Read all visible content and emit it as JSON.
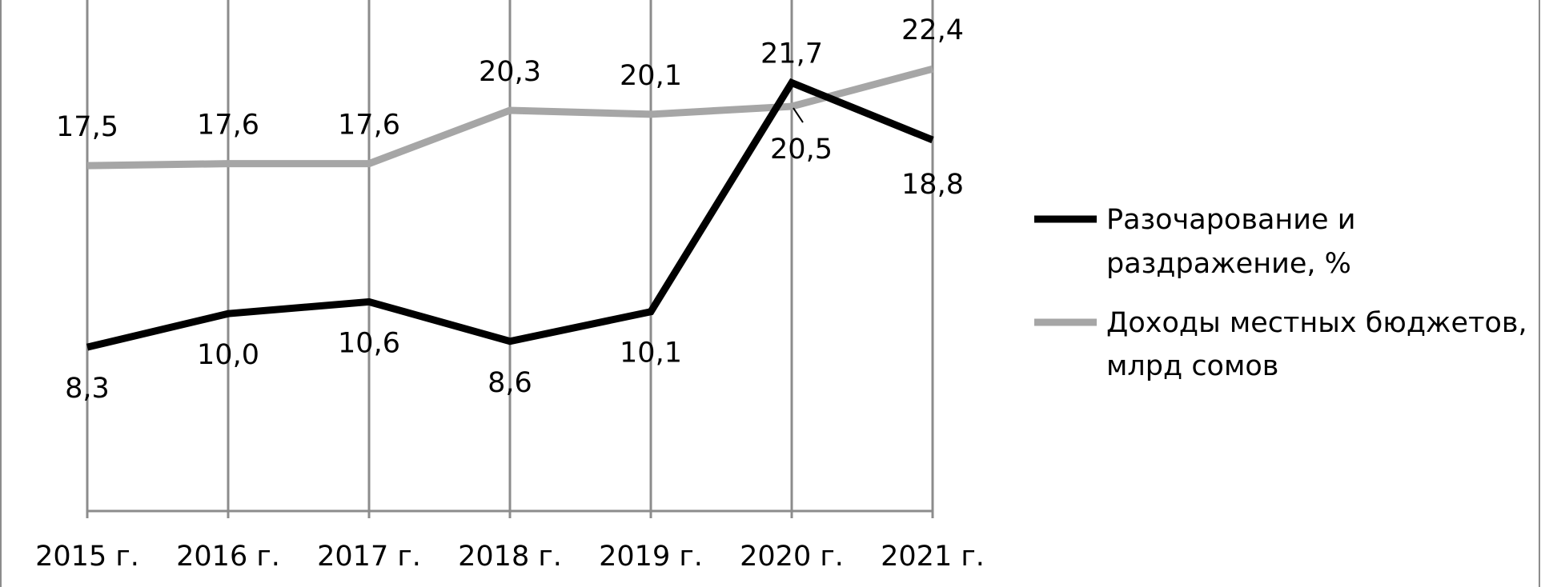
{
  "chart_data": {
    "type": "line",
    "categories": [
      "2015 г.",
      "2016 г.",
      "2017 г.",
      "2018 г.",
      "2019 г.",
      "2020 г.",
      "2021 г."
    ],
    "series": [
      {
        "name": "Разочарование и раздражение, %",
        "name_lines": [
          "Разочарование и",
          "раздражение, %"
        ],
        "values": [
          8.3,
          10.0,
          10.6,
          8.6,
          10.1,
          21.7,
          18.8
        ],
        "labels": [
          "8,3",
          "10,0",
          "10,6",
          "8,6",
          "10,1",
          "21,7",
          "18,8"
        ],
        "color": "#000000"
      },
      {
        "name": "Доходы местных бюджетов, млрд сомов",
        "name_lines": [
          "Доходы местных бюджетов,",
          "млрд сомов"
        ],
        "values": [
          17.5,
          17.6,
          17.6,
          20.3,
          20.1,
          20.5,
          22.4
        ],
        "labels": [
          "17,5",
          "17,6",
          "17,6",
          "20,3",
          "20,1",
          "20,5",
          "22,4"
        ],
        "color": "#a6a6a6"
      }
    ],
    "ylim": [
      0,
      25
    ],
    "grid": "vertical",
    "legend": "right",
    "title": "",
    "xlabel": "",
    "ylabel": ""
  }
}
